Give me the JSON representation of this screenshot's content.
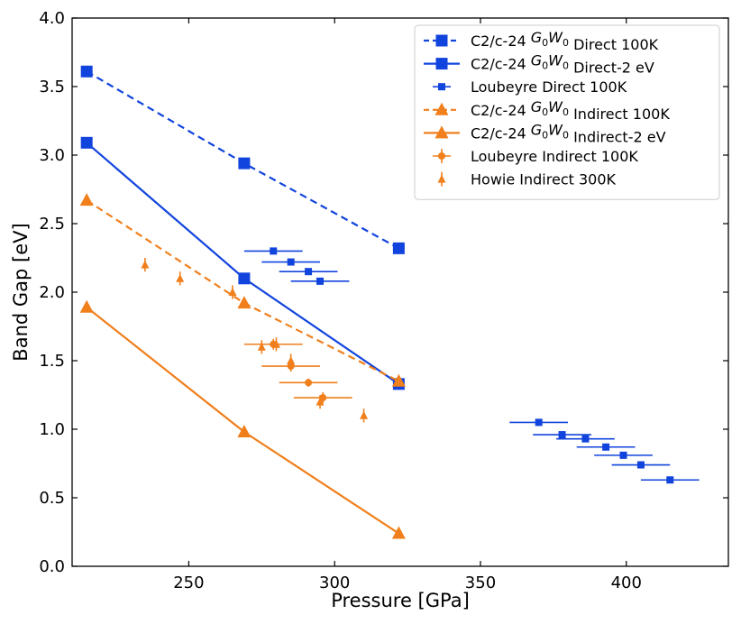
{
  "colors": {
    "blue": "#1144dd",
    "orange": "#f07f1c",
    "axis": "#000000",
    "legend_border": "#cccccc"
  },
  "chart_data": {
    "type": "scatter",
    "xlabel": "Pressure [GPa]",
    "ylabel": "Band Gap [eV]",
    "xlim": [
      210,
      435
    ],
    "ylim": [
      0.0,
      4.0
    ],
    "x_ticks": [
      "250",
      "300",
      "350",
      "400"
    ],
    "y_ticks": [
      "0.0",
      "0.5",
      "1.0",
      "1.5",
      "2.0",
      "2.5",
      "3.0",
      "3.5",
      "4.0"
    ],
    "x_tick_values": [
      250,
      300,
      350,
      400
    ],
    "y_tick_values": [
      0.0,
      0.5,
      1.0,
      1.5,
      2.0,
      2.5,
      3.0,
      3.5,
      4.0
    ],
    "grid": false,
    "legend_position": "top-right",
    "series": [
      {
        "name_prefix": "C2/c-24 ",
        "name_math": "G0W0",
        "name_suffix": " Direct 100K",
        "color": "blue",
        "line": "dashed",
        "marker": "square-large",
        "x": [
          215,
          269,
          322
        ],
        "y": [
          3.61,
          2.94,
          2.32
        ]
      },
      {
        "name_prefix": "C2/c-24 ",
        "name_math": "G0W0",
        "name_suffix": " Direct-2 eV",
        "color": "blue",
        "line": "solid",
        "marker": "square-large",
        "x": [
          215,
          269,
          322
        ],
        "y": [
          3.09,
          2.1,
          1.33
        ]
      },
      {
        "name": "Loubeyre Direct 100K",
        "color": "blue",
        "line": "none",
        "marker": "square-small",
        "x": [
          279,
          285,
          291,
          295,
          370,
          378,
          386,
          393,
          399,
          405,
          415
        ],
        "y": [
          2.3,
          2.22,
          2.15,
          2.08,
          1.05,
          0.96,
          0.93,
          0.87,
          0.81,
          0.74,
          0.63
        ],
        "xerr": [
          10,
          10,
          10,
          10,
          10,
          10,
          10,
          10,
          10,
          10,
          10
        ]
      },
      {
        "name_prefix": "C2/c-24 ",
        "name_math": "G0W0",
        "name_suffix": " Indirect 100K",
        "color": "orange",
        "line": "dashed",
        "marker": "triangle-large",
        "x": [
          215,
          269,
          322
        ],
        "y": [
          2.67,
          1.92,
          1.35
        ]
      },
      {
        "name_prefix": "C2/c-24 ",
        "name_math": "G0W0",
        "name_suffix": " Indirect-2 eV",
        "color": "orange",
        "line": "solid",
        "marker": "triangle-large",
        "x": [
          215,
          269,
          322
        ],
        "y": [
          1.89,
          0.98,
          0.24
        ]
      },
      {
        "name": "Loubeyre Indirect 100K",
        "color": "orange",
        "line": "none",
        "marker": "circle",
        "x": [
          279,
          285,
          291,
          296
        ],
        "y": [
          1.62,
          1.46,
          1.34,
          1.23
        ],
        "xerr": [
          10,
          10,
          10,
          10
        ],
        "yerr": [
          0.04,
          0.04,
          0.03,
          0.04
        ]
      },
      {
        "name": "Howie Indirect 300K",
        "color": "orange",
        "line": "none",
        "marker": "triangle-small",
        "x": [
          235,
          247,
          265,
          275,
          280,
          285,
          295,
          310
        ],
        "y": [
          2.2,
          2.1,
          2.0,
          1.6,
          1.62,
          1.5,
          1.2,
          1.1
        ],
        "yerr": [
          0.05,
          0.05,
          0.05,
          0.05,
          0.05,
          0.05,
          0.05,
          0.05
        ]
      }
    ]
  }
}
